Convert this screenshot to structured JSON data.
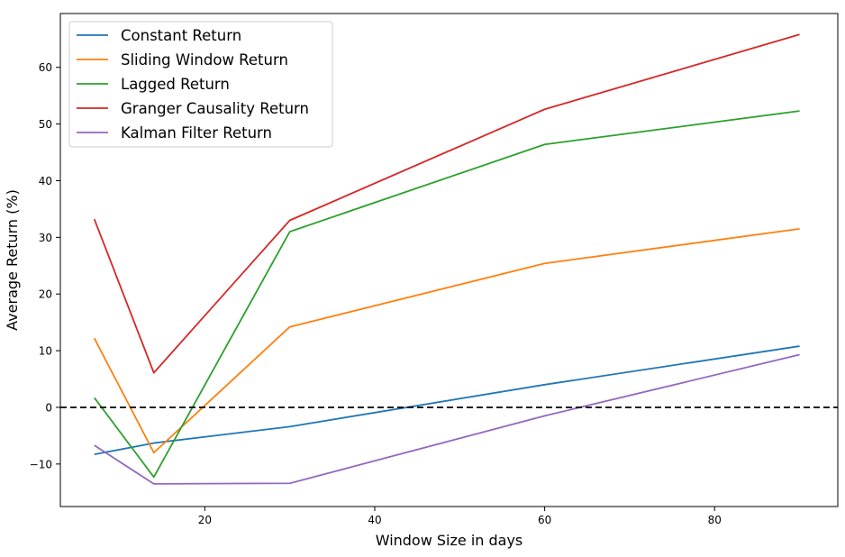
{
  "chart_data": {
    "type": "line",
    "title": "",
    "xlabel": "Window Size in days",
    "ylabel": "Average Return (%)",
    "x": [
      7,
      14,
      30,
      60,
      90
    ],
    "xlim": [
      3,
      94.5
    ],
    "ylim": [
      -17.5,
      69.5
    ],
    "xticks": [
      20,
      40,
      60,
      80
    ],
    "yticks": [
      -10,
      0,
      10,
      20,
      30,
      40,
      50,
      60
    ],
    "legend_position": "top-left",
    "grid": false,
    "reference_line": {
      "y": 0,
      "style": "dashed",
      "color": "#000000"
    },
    "series": [
      {
        "name": "Constant Return",
        "color": "#1f77b4",
        "values": [
          -8.3,
          -6.3,
          -3.4,
          4.0,
          10.8
        ]
      },
      {
        "name": "Sliding Window Return",
        "color": "#ff7f0e",
        "values": [
          12.2,
          -8.0,
          14.2,
          25.4,
          31.5
        ]
      },
      {
        "name": "Lagged Return",
        "color": "#2ca02c",
        "values": [
          1.7,
          -12.3,
          31.0,
          46.4,
          52.3
        ]
      },
      {
        "name": "Granger Causality Return",
        "color": "#d62728",
        "values": [
          33.2,
          6.1,
          33.0,
          52.6,
          65.8
        ]
      },
      {
        "name": "Kalman Filter Return",
        "color": "#9467bd",
        "values": [
          -6.7,
          -13.5,
          -13.4,
          -1.5,
          9.3
        ]
      }
    ]
  }
}
